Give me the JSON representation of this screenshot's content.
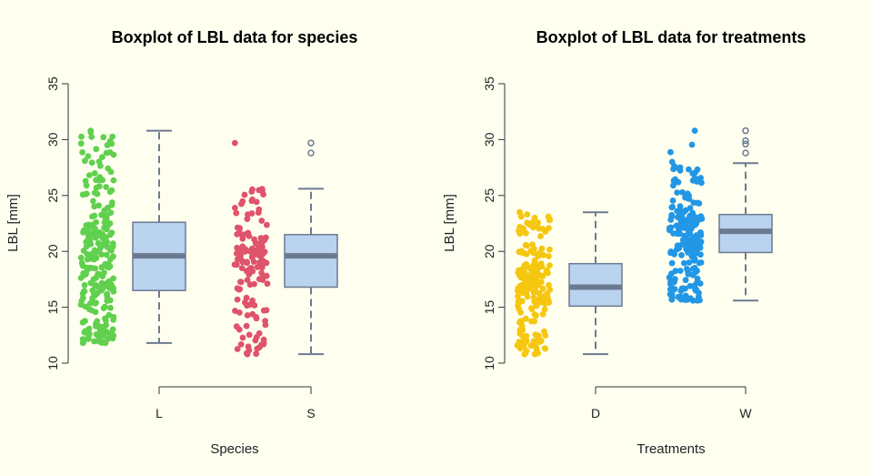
{
  "chart_data": [
    {
      "type": "boxplot",
      "title": "Boxplot of LBL data for species",
      "xlabel": "Species",
      "ylabel": "LBL [mm]",
      "ylim": [
        10,
        35
      ],
      "yticks": [
        "10",
        "15",
        "20",
        "25",
        "30",
        "35"
      ],
      "categories": [
        "L",
        "S"
      ],
      "grid": false,
      "box_fill": "#bad3ef",
      "box_stroke": "#6c7a91",
      "boxes": [
        {
          "category": "L",
          "whisker_low": 11.8,
          "q1": 16.5,
          "median": 19.6,
          "q3": 22.6,
          "whisker_high": 30.8,
          "outliers": []
        },
        {
          "category": "S",
          "whisker_low": 10.8,
          "q1": 16.8,
          "median": 19.6,
          "q3": 21.5,
          "whisker_high": 25.6,
          "outliers": [
            28.8,
            29.7
          ]
        }
      ],
      "jitter_series": [
        {
          "category": "L",
          "color": "#61d04f",
          "count": 250,
          "min": 11.8,
          "max": 30.8
        },
        {
          "category": "S",
          "color": "#df536b",
          "count": 150,
          "min": 10.8,
          "max": 29.7
        }
      ]
    },
    {
      "type": "boxplot",
      "title": "Boxplot of LBL data for treatments",
      "xlabel": "Treatments",
      "ylabel": "LBL [mm]",
      "ylim": [
        10,
        35
      ],
      "yticks": [
        "10",
        "15",
        "20",
        "25",
        "30",
        "35"
      ],
      "categories": [
        "D",
        "W"
      ],
      "grid": false,
      "box_fill": "#bad3ef",
      "box_stroke": "#6c7a91",
      "boxes": [
        {
          "category": "D",
          "whisker_low": 10.8,
          "q1": 15.1,
          "median": 16.8,
          "q3": 18.9,
          "whisker_high": 23.5,
          "outliers": []
        },
        {
          "category": "W",
          "whisker_low": 15.6,
          "q1": 19.9,
          "median": 21.8,
          "q3": 23.3,
          "whisker_high": 27.9,
          "outliers": [
            28.8,
            29.6,
            29.9,
            30.8
          ]
        }
      ],
      "jitter_series": [
        {
          "category": "D",
          "color": "#f5c710",
          "count": 200,
          "min": 10.8,
          "max": 23.5
        },
        {
          "category": "W",
          "color": "#2297e6",
          "count": 200,
          "min": 15.6,
          "max": 30.8
        }
      ]
    }
  ]
}
